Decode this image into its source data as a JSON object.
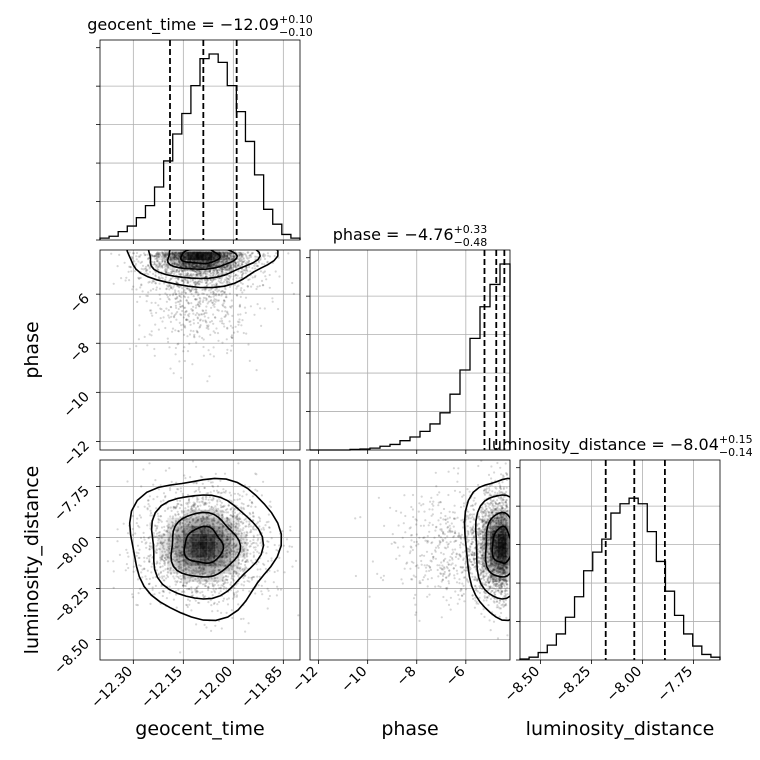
{
  "chart_data": {
    "type": "corner",
    "parameters": [
      {
        "name": "geocent_time",
        "label": "geocent_time",
        "median": "−12.09",
        "plus": "+0.10",
        "minus": "−0.10",
        "range": [
          -12.4,
          -11.8
        ],
        "ticks": [
          -12.3,
          -12.15,
          -12.0,
          -11.85
        ],
        "tick_labels": [
          "−12.30",
          "−12.15",
          "−12.00",
          "−11.85"
        ],
        "quantiles": [
          -12.19,
          -12.09,
          -11.99
        ],
        "hist_bins": [
          0.01,
          0.02,
          0.045,
          0.075,
          0.12,
          0.185,
          0.285,
          0.425,
          0.57,
          0.68,
          0.83,
          0.975,
          1.0,
          0.955,
          0.83,
          0.69,
          0.53,
          0.35,
          0.165,
          0.085,
          0.03,
          0.01
        ]
      },
      {
        "name": "phase",
        "label": "phase",
        "median": "−4.76",
        "plus": "+0.33",
        "minus": "−0.48",
        "range": [
          -12.35,
          -4.2
        ],
        "ticks": [
          -12,
          -10,
          -8,
          -6
        ],
        "tick_labels": [
          "−12",
          "−10",
          "−8",
          "−6"
        ],
        "quantiles": [
          -5.24,
          -4.76,
          -4.43
        ],
        "hist_bins": [
          0.0,
          0.0,
          0.0,
          0.0,
          0.003,
          0.005,
          0.01,
          0.02,
          0.03,
          0.05,
          0.07,
          0.1,
          0.14,
          0.2,
          0.3,
          0.43,
          0.6,
          0.77,
          0.89,
          1.0
        ]
      },
      {
        "name": "luminosity_distance",
        "label": "luminosity_distance",
        "median": "−8.04",
        "plus": "+0.15",
        "minus": "−0.14",
        "range": [
          -8.6,
          -7.62
        ],
        "ticks": [
          -8.5,
          -8.25,
          -8.0,
          -7.75
        ],
        "tick_labels": [
          "−8.50",
          "−8.25",
          "−8.00",
          "−7.75"
        ],
        "quantiles": [
          -8.18,
          -8.04,
          -7.89
        ],
        "hist_bins": [
          0.005,
          0.015,
          0.04,
          0.08,
          0.14,
          0.23,
          0.34,
          0.48,
          0.58,
          0.65,
          0.79,
          0.84,
          0.87,
          0.84,
          0.69,
          0.53,
          0.37,
          0.24,
          0.14,
          0.075,
          0.03,
          0.015
        ]
      }
    ],
    "titles": [
      "geocent_time = −12.09",
      "phase = −4.76",
      "luminosity_distance = −8.04"
    ],
    "grid": true
  }
}
